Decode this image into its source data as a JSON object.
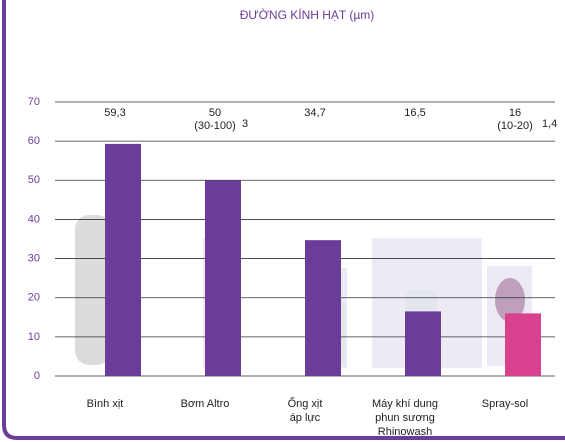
{
  "chart_data": {
    "type": "bar",
    "title": "ĐƯỜNG KÍNH HẠT (µm)",
    "categories": [
      "Bình xịt",
      "Bơm Altro",
      "Ống xịt\náp lực",
      "Máy khí dung\nphun sương\nRhinowash",
      "Spray-sol"
    ],
    "values": [
      59.3,
      50,
      34.7,
      16.5,
      16
    ],
    "value_labels": [
      "59,3",
      "50",
      "34,7",
      "16,5",
      "16"
    ],
    "value_notes": [
      null,
      "(30-100)",
      null,
      null,
      "(10-20)"
    ],
    "value_refs": [
      null,
      "3",
      null,
      null,
      "1,4"
    ],
    "colors": [
      "#6a3d9a",
      "#6a3d9a",
      "#6a3d9a",
      "#6a3d9a",
      "#d9418f"
    ],
    "ylim": [
      0,
      70
    ],
    "yticks": [
      0,
      10,
      20,
      30,
      40,
      50,
      60,
      70
    ],
    "grid": true
  }
}
